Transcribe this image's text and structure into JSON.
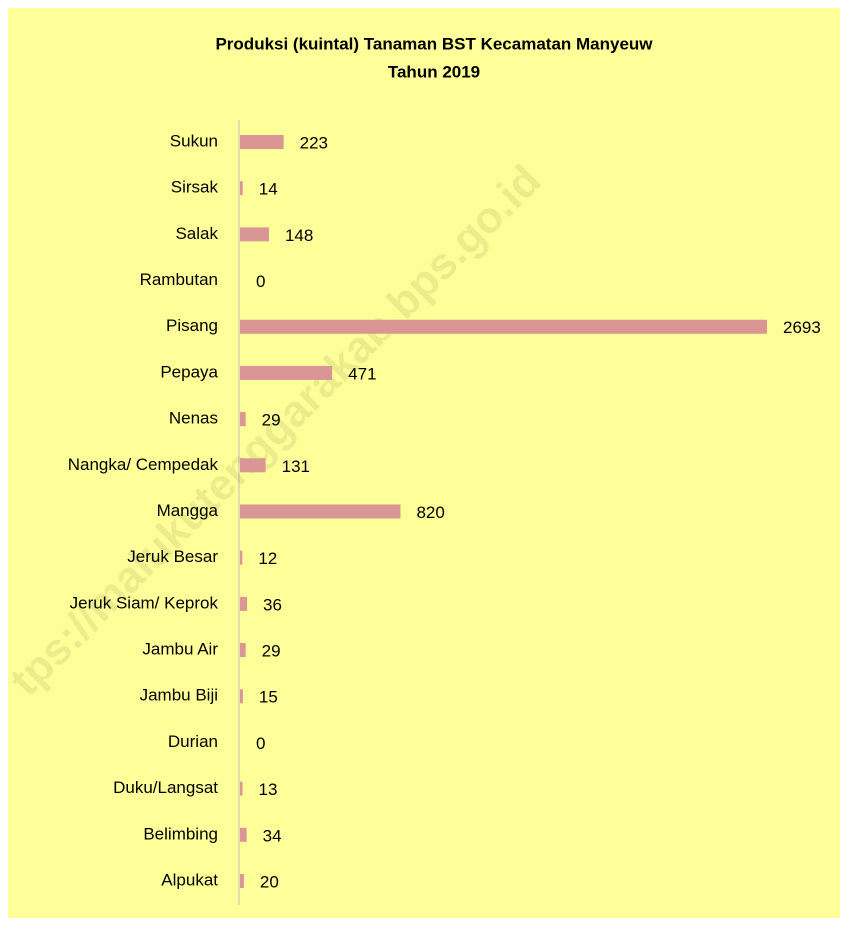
{
  "chart_data": {
    "type": "bar",
    "orientation": "horizontal",
    "title": "Produksi (kuintal) Tanaman BST Kecamatan Manyeuw",
    "subtitle": "Tahun 2019",
    "watermark": "tps://malukutenggarakab.bps.go.id",
    "categories": [
      "Sukun",
      "Sirsak",
      "Salak",
      "Rambutan",
      "Pisang",
      "Pepaya",
      "Nenas",
      "Nangka/ Cempedak",
      "Mangga",
      "Jeruk Besar",
      "Jeruk Siam/ Keprok",
      "Jambu Air",
      "Jambu Biji",
      "Durian",
      "Duku/Langsat",
      "Belimbing",
      "Alpukat"
    ],
    "values": [
      223,
      14,
      148,
      0,
      2693,
      471,
      29,
      131,
      820,
      12,
      36,
      29,
      15,
      0,
      13,
      34,
      20
    ],
    "color": "#d99694",
    "background": "#ffff99"
  }
}
